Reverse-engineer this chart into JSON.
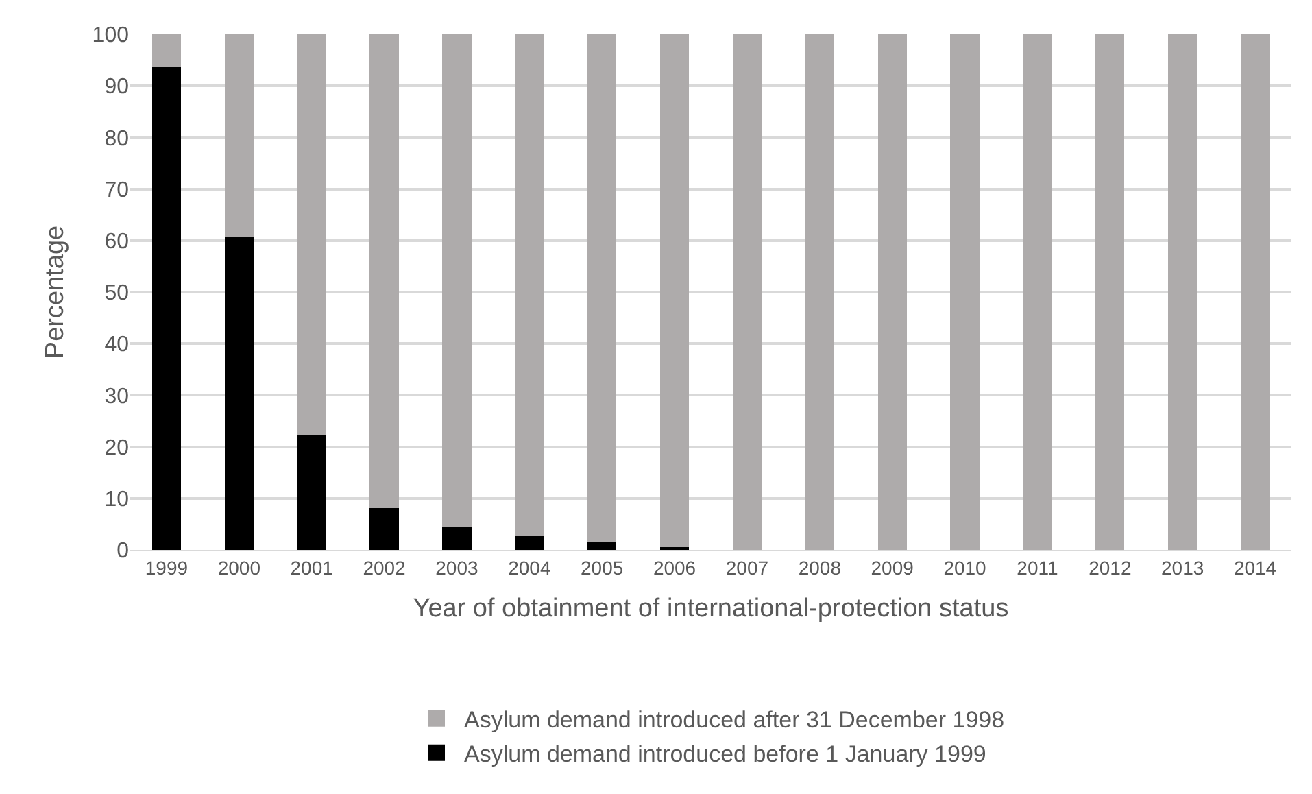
{
  "chart_data": {
    "type": "bar",
    "stacked": true,
    "xlabel": "Year of obtainment of international-protection status",
    "ylabel": "Percentage",
    "categories": [
      "1999",
      "2000",
      "2001",
      "2002",
      "2003",
      "2004",
      "2005",
      "2006",
      "2007",
      "2008",
      "2009",
      "2010",
      "2011",
      "2012",
      "2013",
      "2014"
    ],
    "series": [
      {
        "name": "Asylum demand introduced before 1 January 1999",
        "color": "#000000",
        "values": [
          93.6,
          60.6,
          22.2,
          8.1,
          4.4,
          2.6,
          1.4,
          0.5,
          0,
          0,
          0,
          0,
          0,
          0,
          0,
          0
        ]
      },
      {
        "name": "Asylum demand introduced after 31 December 1998",
        "color": "#aeabab",
        "values": [
          6.4,
          39.4,
          77.8,
          91.9,
          95.6,
          97.4,
          98.6,
          99.5,
          100,
          100,
          100,
          100,
          100,
          100,
          100,
          100
        ]
      }
    ],
    "ylim": [
      0,
      100
    ],
    "yticks": [
      0,
      10,
      20,
      30,
      40,
      50,
      60,
      70,
      80,
      90,
      100
    ],
    "grid": "y",
    "legend": "bottom"
  }
}
